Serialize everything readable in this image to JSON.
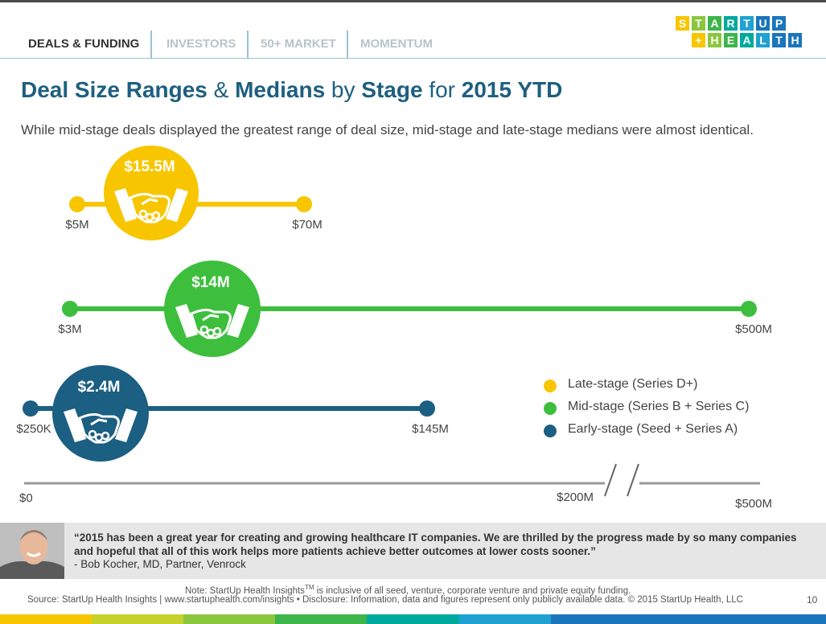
{
  "tabs": [
    {
      "label": "DEALS & FUNDING",
      "active": true
    },
    {
      "label": "INVESTORS",
      "active": false
    },
    {
      "label": "50+ MARKET",
      "active": false
    },
    {
      "label": "MOMENTUM",
      "active": false
    }
  ],
  "logo": {
    "row1": [
      "S",
      "T",
      "A",
      "R",
      "T",
      "U",
      "P"
    ],
    "row2": [
      "+",
      "H",
      "E",
      "A",
      "L",
      "T",
      "H"
    ],
    "colors": [
      "#f7c600",
      "#8cc63f",
      "#3db54a",
      "#00a99d",
      "#1fa2d1",
      "#1b75bb",
      "#1b75bb"
    ]
  },
  "title_parts": [
    {
      "text": "Deal Size Ranges",
      "bold": true
    },
    {
      "text": " & ",
      "bold": false
    },
    {
      "text": "Medians",
      "bold": true
    },
    {
      "text": " by ",
      "bold": false
    },
    {
      "text": "Stage",
      "bold": true
    },
    {
      "text": " for ",
      "bold": false
    },
    {
      "text": "2015 YTD",
      "bold": true
    }
  ],
  "subtitle": "While mid-stage deals displayed the greatest range of deal size, mid-stage and late-stage medians were almost identical.",
  "chart_data": {
    "type": "range",
    "title": "Deal Size Ranges & Medians by Stage for 2015 YTD",
    "axis": {
      "type": "broken-linear",
      "segments": [
        [
          0,
          200
        ],
        [
          500,
          500
        ]
      ],
      "tick_labels": [
        "$0",
        "$200M",
        "$500M"
      ],
      "unit": "$M"
    },
    "series": [
      {
        "name": "Late-stage (Series D+)",
        "color": "#f7c600",
        "min": 5,
        "max": 70,
        "median": 15.5,
        "min_label": "$5M",
        "max_label": "$70M",
        "median_label": "$15.5M"
      },
      {
        "name": "Mid-stage (Series B + Series C)",
        "color": "#3dbf3d",
        "min": 3,
        "max": 500,
        "median": 14,
        "min_label": "$3M",
        "max_label": "$500M",
        "median_label": "$14M"
      },
      {
        "name": "Early-stage (Seed + Series A)",
        "color": "#1b5f82",
        "min": 0.25,
        "max": 145,
        "median": 2.4,
        "min_label": "$250K",
        "max_label": "$145M",
        "median_label": "$2.4M"
      }
    ],
    "legend_position": "right"
  },
  "quote": {
    "text": "“2015 has been a great year for creating and growing healthcare IT companies.  We are thrilled by the progress made by so many companies and hopeful that all of this work helps more patients achieve better outcomes at lower costs sooner.”",
    "by": "- Bob Kocher, MD, Partner, Venrock"
  },
  "footer": {
    "note_prefix": "Note: StartUp Health Insights",
    "note_tm": "TM",
    "note_suffix": " is inclusive of all seed, venture, corporate venture and private equity funding.",
    "source_prefix": "Source: StartUp Health Insights | ",
    "source_url": "www.startuphealth.com/insights",
    "source_suffix": "  •  Disclosure: Information, data and figures represent only publicly available data. © 2015 StartUp Health, LLC",
    "page": "10"
  },
  "bottombar_colors": [
    "#f7c600",
    "#c5d22b",
    "#8cc63f",
    "#3db54a",
    "#00a99d",
    "#1fa2d1",
    "#1b75bb",
    "#1b75bb",
    "#1b75bb"
  ]
}
